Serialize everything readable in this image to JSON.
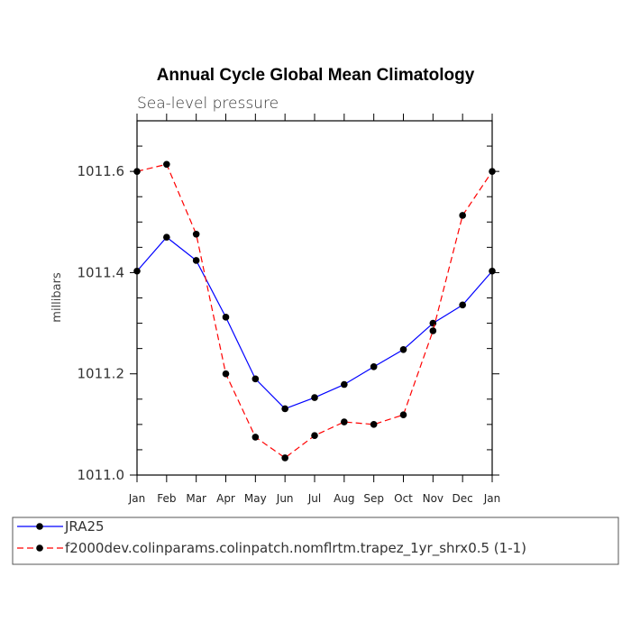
{
  "chart_data": {
    "type": "line",
    "title": "Annual Cycle Global Mean Climatology",
    "subtitle": "Sea-level pressure",
    "xlabel": "",
    "ylabel": "millibars",
    "categories": [
      "Jan",
      "Feb",
      "Mar",
      "Apr",
      "May",
      "Jun",
      "Jul",
      "Aug",
      "Sep",
      "Oct",
      "Nov",
      "Dec",
      "Jan"
    ],
    "ylim": [
      1011.0,
      1011.7
    ],
    "yticks": [
      "1011.0",
      "1011.2",
      "1011.4",
      "1011.6"
    ],
    "ytick_values": [
      1011.0,
      1011.2,
      1011.4,
      1011.6
    ],
    "series": [
      {
        "name": "JRA25",
        "color": "#0000ff",
        "style": "solid",
        "values": [
          1011.403,
          1011.47,
          1011.424,
          1011.312,
          1011.19,
          1011.131,
          1011.153,
          1011.179,
          1011.214,
          1011.248,
          1011.3,
          1011.336,
          1011.403
        ]
      },
      {
        "name": "f2000dev.colinparams.colinpatch.nomflrtm.trapez_1yr_shrx0.5 (1-1)",
        "color": "#ff0000",
        "style": "dashed",
        "values": [
          1011.6,
          1011.614,
          1011.476,
          1011.2,
          1011.075,
          1011.034,
          1011.078,
          1011.105,
          1011.1,
          1011.119,
          1011.285,
          1011.513,
          1011.6
        ]
      }
    ],
    "legend_position": "bottom",
    "grid": false
  }
}
